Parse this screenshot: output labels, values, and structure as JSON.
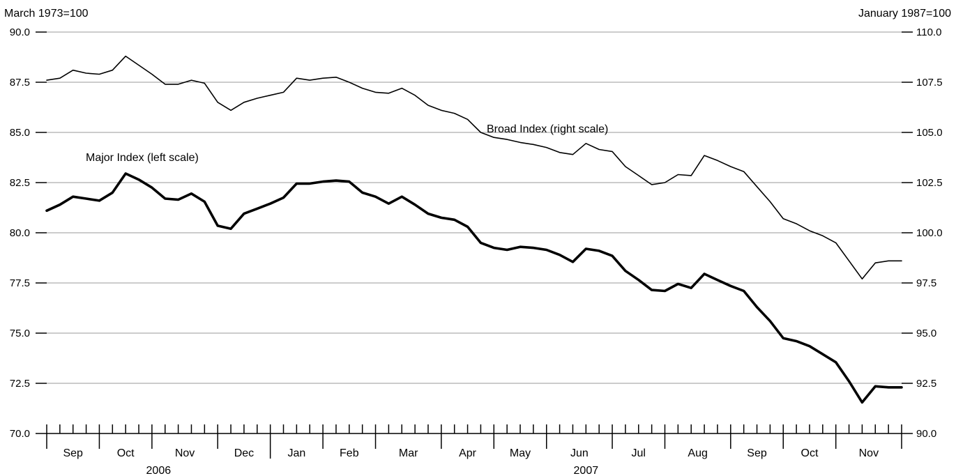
{
  "chart_data": {
    "type": "line",
    "left_unit": "March 1973=100",
    "right_unit": "January 1987=100",
    "left_axis": {
      "min": 70.0,
      "max": 90.0,
      "ticks": [
        "70.0",
        "72.5",
        "75.0",
        "77.5",
        "80.0",
        "82.5",
        "85.0",
        "87.5",
        "90.0"
      ]
    },
    "right_axis": {
      "min": 90.0,
      "max": 110.0,
      "ticks": [
        "90.0",
        "92.5",
        "95.0",
        "97.5",
        "100.0",
        "102.5",
        "105.0",
        "107.5",
        "110.0"
      ]
    },
    "months": [
      "Sep",
      "Oct",
      "Nov",
      "Dec",
      "Jan",
      "Feb",
      "Mar",
      "Apr",
      "May",
      "Jun",
      "Jul",
      "Aug",
      "Sep",
      "Oct",
      "Nov"
    ],
    "years": [
      "2006",
      "2007"
    ],
    "grid": true,
    "series": [
      {
        "name": "Broad Index (right scale)",
        "axis": "right",
        "values": [
          107.6,
          107.7,
          108.1,
          107.95,
          107.9,
          108.1,
          108.8,
          108.35,
          107.9,
          107.4,
          107.4,
          107.6,
          107.45,
          106.5,
          106.1,
          106.5,
          106.7,
          106.85,
          107.0,
          107.7,
          107.6,
          107.7,
          107.75,
          107.5,
          107.2,
          107.0,
          106.95,
          107.2,
          106.85,
          106.35,
          106.1,
          105.95,
          105.65,
          105.0,
          104.75,
          104.65,
          104.5,
          104.4,
          104.25,
          104.0,
          103.9,
          104.45,
          104.15,
          104.05,
          103.3,
          102.85,
          102.4,
          102.5,
          102.9,
          102.85,
          103.85,
          103.6,
          103.3,
          103.05,
          102.3,
          101.55,
          100.7,
          100.45,
          100.1,
          99.85,
          99.5,
          98.6,
          97.7,
          98.5,
          98.6,
          98.6
        ]
      },
      {
        "name": "Major Index (left scale)",
        "axis": "left",
        "values": [
          81.1,
          81.4,
          81.8,
          81.7,
          81.6,
          82.0,
          82.95,
          82.65,
          82.25,
          81.7,
          81.65,
          81.95,
          81.55,
          80.35,
          80.2,
          80.95,
          81.2,
          81.45,
          81.75,
          82.45,
          82.45,
          82.55,
          82.6,
          82.55,
          82.0,
          81.8,
          81.45,
          81.8,
          81.4,
          80.95,
          80.75,
          80.65,
          80.3,
          79.5,
          79.25,
          79.15,
          79.3,
          79.25,
          79.15,
          78.9,
          78.55,
          79.2,
          79.1,
          78.85,
          78.1,
          77.65,
          77.15,
          77.1,
          77.45,
          77.25,
          77.95,
          77.65,
          77.35,
          77.1,
          76.3,
          75.6,
          74.75,
          74.6,
          74.35,
          73.95,
          73.55,
          72.6,
          71.55,
          72.35,
          72.3,
          72.3
        ]
      }
    ]
  }
}
